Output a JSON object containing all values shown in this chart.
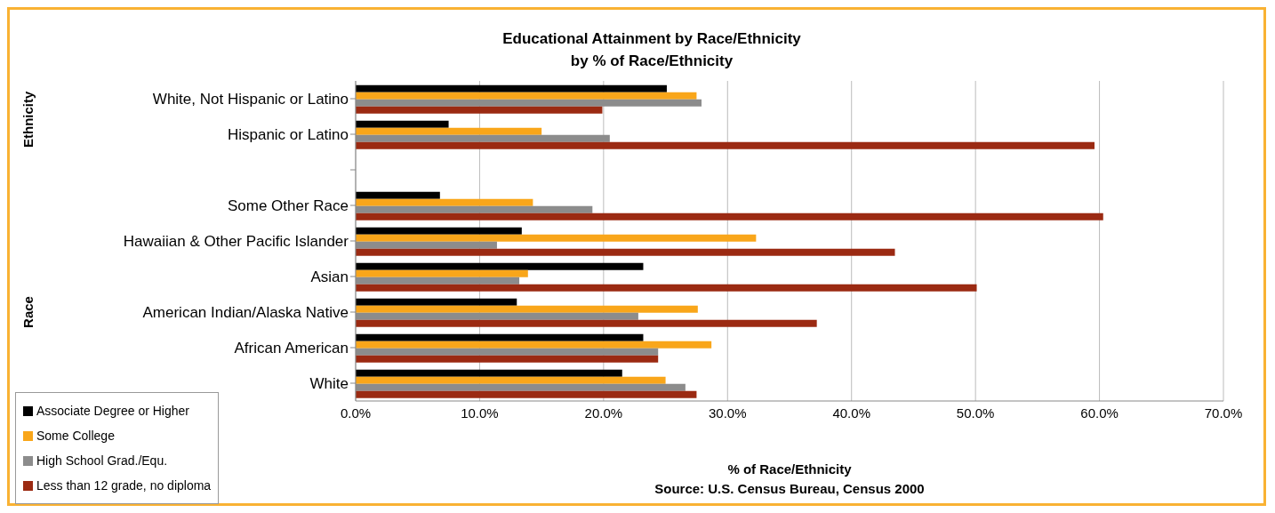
{
  "chart_data": {
    "type": "bar",
    "orientation": "horizontal",
    "title": "Educational Attainment by Race/Ethnicity",
    "subtitle": "by % of Race/Ethnicity",
    "xlabel": "% of Race/Ethnicity",
    "categories": [
      "White, Not Hispanic or Latino",
      "Hispanic or Latino",
      null,
      "Some Other Race",
      "Hawaiian & Other Pacific Islander",
      "Asian",
      "American Indian/Alaska Native",
      "African American",
      "White"
    ],
    "series": [
      {
        "name": "Associate Degree or Higher",
        "color": "#000000",
        "values": [
          25.1,
          7.5,
          null,
          6.8,
          13.4,
          23.2,
          13.0,
          23.2,
          21.5
        ]
      },
      {
        "name": "Some College",
        "color": "#f9a61a",
        "values": [
          27.5,
          15.0,
          null,
          14.3,
          32.3,
          13.9,
          27.6,
          28.7,
          25.0
        ]
      },
      {
        "name": "High School Grad./Equ.",
        "color": "#8c8c8c",
        "values": [
          27.9,
          20.5,
          null,
          19.1,
          11.4,
          13.2,
          22.8,
          24.4,
          26.6
        ]
      },
      {
        "name": "Less than 12 grade, no diploma",
        "color": "#9b2a12",
        "values": [
          19.9,
          59.6,
          null,
          60.3,
          43.5,
          50.1,
          37.2,
          24.4,
          27.5
        ]
      }
    ],
    "xlim": [
      0,
      70
    ],
    "xticks": [
      {
        "value": 0,
        "label": "0.0%"
      },
      {
        "value": 10,
        "label": "10.0%"
      },
      {
        "value": 20,
        "label": "20.0%"
      },
      {
        "value": 30,
        "label": "30.0%"
      },
      {
        "value": 40,
        "label": "40.0%"
      },
      {
        "value": 50,
        "label": "50.0%"
      },
      {
        "value": 60,
        "label": "60.0%"
      },
      {
        "value": 70,
        "label": "70.0%"
      }
    ],
    "grid": "x",
    "legend": "bottom left",
    "annotations": [
      "Ethnicity",
      "Race",
      "Source: U.S. Census Bureau, Census 2000"
    ]
  }
}
